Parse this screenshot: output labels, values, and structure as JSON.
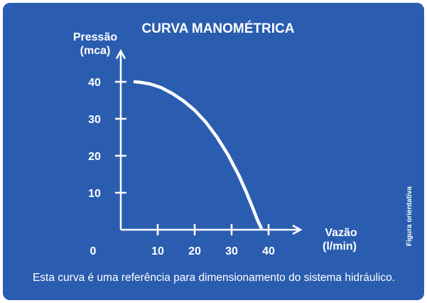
{
  "colors": {
    "background": "#2a5db0",
    "foreground": "#ffffff",
    "page": "#ffffff"
  },
  "chart_data": {
    "type": "line",
    "title": "CURVA MANOMÉTRICA",
    "ylabel_line1": "Pressão",
    "ylabel_line2": "(mca)",
    "xlabel_line1": "Vazão",
    "xlabel_line2": "(l/min)",
    "origin_label": "0",
    "xticks": [
      10,
      20,
      30,
      40
    ],
    "yticks": [
      10,
      20,
      30,
      40
    ],
    "xlim": [
      0,
      50
    ],
    "ylim": [
      0,
      47
    ],
    "grid": false,
    "series": [
      {
        "x": [
          3.8,
          5,
          8,
          11,
          14,
          17,
          20,
          23,
          26,
          29,
          32,
          34,
          36,
          37,
          38
        ],
        "y": [
          40,
          39.9,
          39.4,
          38.4,
          36.8,
          34.8,
          32.3,
          29.1,
          25.1,
          20.3,
          14.6,
          10.1,
          5.2,
          2.6,
          0.5
        ]
      }
    ]
  },
  "caption": "Esta curva é uma referência para dimensionamento do sistema hidráulico.",
  "side_note": "Figura orientativa"
}
